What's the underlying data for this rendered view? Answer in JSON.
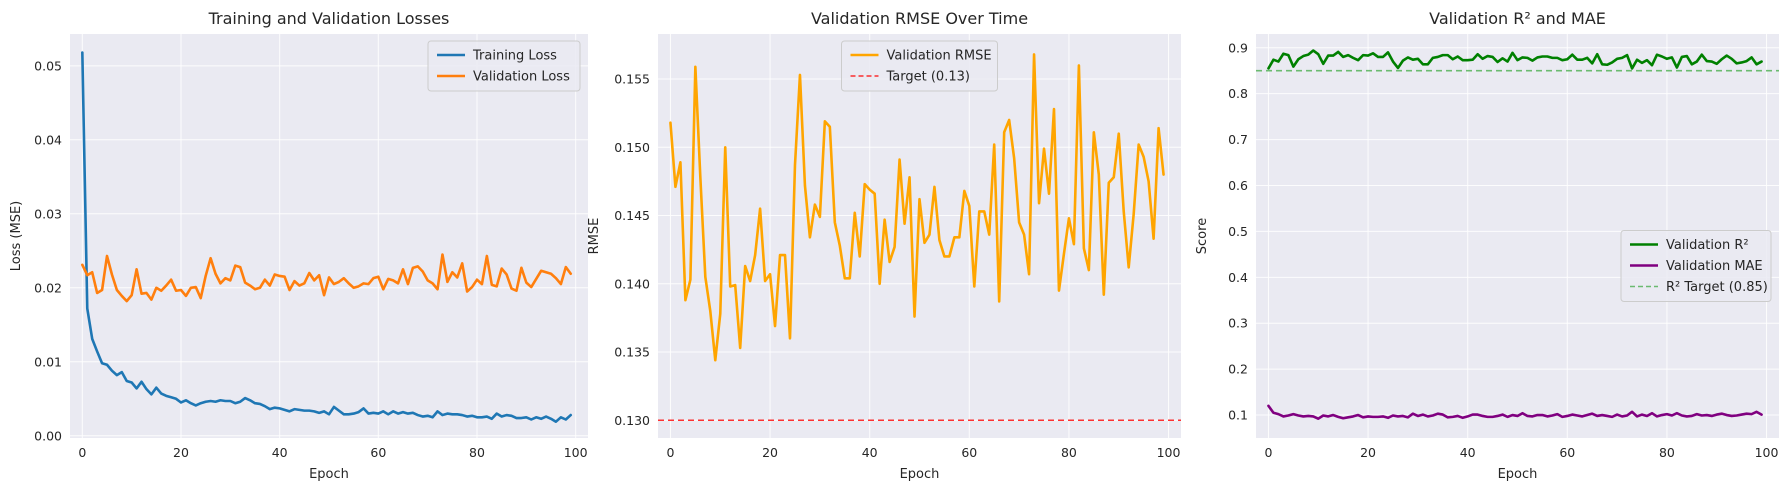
{
  "chart_data": [
    {
      "type": "line",
      "title": "Training and Validation Losses",
      "xlabel": "Epoch",
      "ylabel": "Loss (MSE)",
      "xlim": [
        -2.5,
        102.5
      ],
      "ylim": [
        -0.0003,
        0.0543
      ],
      "xticks": [
        0,
        20,
        40,
        60,
        80,
        100
      ],
      "xtick_labels": [
        "0",
        "20",
        "40",
        "60",
        "80",
        "100"
      ],
      "yticks": [
        0.0,
        0.01,
        0.02,
        0.03,
        0.04,
        0.05
      ],
      "ytick_labels": [
        "0.00",
        "0.01",
        "0.02",
        "0.03",
        "0.04",
        "0.05"
      ],
      "grid": true,
      "legend": "upper-right",
      "series": [
        {
          "name": "Training Loss",
          "color": "#1f77b4",
          "values": [
            0.0518,
            0.0172,
            0.0131,
            0.0114,
            0.0098,
            0.0096,
            0.0088,
            0.0082,
            0.0086,
            0.0074,
            0.0072,
            0.0064,
            0.0073,
            0.0063,
            0.0056,
            0.0065,
            0.0057,
            0.0054,
            0.0052,
            0.005,
            0.0045,
            0.0048,
            0.0044,
            0.0041,
            0.0044,
            0.0046,
            0.0047,
            0.0046,
            0.0048,
            0.0047,
            0.0047,
            0.0044,
            0.0046,
            0.0051,
            0.0048,
            0.0044,
            0.0043,
            0.004,
            0.0036,
            0.0038,
            0.0037,
            0.0035,
            0.0033,
            0.0036,
            0.0035,
            0.0034,
            0.0034,
            0.0033,
            0.0031,
            0.0033,
            0.0029,
            0.0039,
            0.0034,
            0.0029,
            0.0029,
            0.003,
            0.0032,
            0.0037,
            0.003,
            0.0031,
            0.003,
            0.0033,
            0.0029,
            0.0033,
            0.003,
            0.0032,
            0.003,
            0.0031,
            0.0028,
            0.0026,
            0.0027,
            0.0025,
            0.0033,
            0.0028,
            0.003,
            0.0029,
            0.0029,
            0.0028,
            0.0026,
            0.0027,
            0.0025,
            0.0025,
            0.0026,
            0.0023,
            0.003,
            0.0026,
            0.0028,
            0.0027,
            0.0024,
            0.0024,
            0.0025,
            0.0022,
            0.0025,
            0.0023,
            0.0026,
            0.0023,
            0.0019,
            0.0025,
            0.0022,
            0.0028
          ]
        },
        {
          "name": "Validation Loss",
          "color": "#ff7f0e",
          "values": [
            0.0231,
            0.0217,
            0.0221,
            0.0193,
            0.0197,
            0.0243,
            0.0218,
            0.0197,
            0.0189,
            0.0182,
            0.019,
            0.0225,
            0.0192,
            0.0193,
            0.0184,
            0.02,
            0.0196,
            0.0203,
            0.0211,
            0.0196,
            0.0197,
            0.0189,
            0.02,
            0.0201,
            0.0186,
            0.0216,
            0.024,
            0.0219,
            0.0206,
            0.0213,
            0.021,
            0.023,
            0.0228,
            0.0207,
            0.0203,
            0.0198,
            0.02,
            0.0211,
            0.0203,
            0.0218,
            0.0216,
            0.0215,
            0.0197,
            0.0209,
            0.0203,
            0.0206,
            0.022,
            0.021,
            0.0217,
            0.019,
            0.0214,
            0.0205,
            0.0208,
            0.0213,
            0.0206,
            0.02,
            0.0202,
            0.0206,
            0.0205,
            0.0213,
            0.0215,
            0.0198,
            0.0212,
            0.021,
            0.0206,
            0.0225,
            0.0205,
            0.0227,
            0.0229,
            0.0222,
            0.021,
            0.0206,
            0.0198,
            0.0245,
            0.0208,
            0.0221,
            0.0214,
            0.0233,
            0.0195,
            0.0201,
            0.0211,
            0.0205,
            0.0243,
            0.0204,
            0.0202,
            0.0226,
            0.0218,
            0.0199,
            0.0196,
            0.0227,
            0.0207,
            0.0201,
            0.0212,
            0.0223,
            0.0221,
            0.0219,
            0.0213,
            0.0205,
            0.0228,
            0.0219
          ]
        }
      ]
    },
    {
      "type": "line",
      "title": "Validation RMSE Over Time",
      "xlabel": "Epoch",
      "ylabel": "RMSE",
      "xlim": [
        -2.5,
        102.5
      ],
      "ylim": [
        0.1287,
        0.1583
      ],
      "xticks": [
        0,
        20,
        40,
        60,
        80,
        100
      ],
      "xtick_labels": [
        "0",
        "20",
        "40",
        "60",
        "80",
        "100"
      ],
      "yticks": [
        0.13,
        0.135,
        0.14,
        0.145,
        0.15,
        0.155
      ],
      "ytick_labels": [
        "0.130",
        "0.135",
        "0.140",
        "0.145",
        "0.150",
        "0.155"
      ],
      "grid": true,
      "legend": "upper-center",
      "series": [
        {
          "name": "Validation RMSE",
          "color": "#ffa500",
          "values": [
            0.1518,
            0.1471,
            0.1489,
            0.1388,
            0.1403,
            0.1559,
            0.1478,
            0.1405,
            0.138,
            0.1344,
            0.1378,
            0.15,
            0.1398,
            0.1399,
            0.1353,
            0.1413,
            0.1402,
            0.1421,
            0.1455,
            0.1402,
            0.1407,
            0.1369,
            0.1421,
            0.1421,
            0.136,
            0.1487,
            0.1553,
            0.1472,
            0.1434,
            0.1458,
            0.1449,
            0.1519,
            0.1515,
            0.1445,
            0.1428,
            0.1404,
            0.1404,
            0.1452,
            0.142,
            0.1473,
            0.1469,
            0.1466,
            0.14,
            0.1447,
            0.1416,
            0.1427,
            0.1491,
            0.1444,
            0.1478,
            0.1376,
            0.1462,
            0.143,
            0.1436,
            0.1471,
            0.1432,
            0.142,
            0.142,
            0.1434,
            0.1434,
            0.1468,
            0.1457,
            0.1398,
            0.1453,
            0.1453,
            0.1436,
            0.1502,
            0.1387,
            0.1511,
            0.152,
            0.1492,
            0.1445,
            0.1436,
            0.1407,
            0.1568,
            0.1459,
            0.1499,
            0.1466,
            0.1528,
            0.1395,
            0.1422,
            0.1448,
            0.1429,
            0.156,
            0.1426,
            0.141,
            0.1511,
            0.148,
            0.1392,
            0.1474,
            0.1478,
            0.151,
            0.1453,
            0.1412,
            0.1451,
            0.1502,
            0.1493,
            0.1475,
            0.1433,
            0.1514,
            0.148
          ]
        }
      ],
      "reference_line": {
        "name": "Target (0.13)",
        "y": 0.13,
        "color": "#ff0000",
        "style": "dashed"
      }
    },
    {
      "type": "line",
      "title": "Validation R² and MAE",
      "xlabel": "Epoch",
      "ylabel": "Score",
      "xlim": [
        -2.5,
        102.5
      ],
      "ylim": [
        0.05,
        0.93
      ],
      "xticks": [
        0,
        20,
        40,
        60,
        80,
        100
      ],
      "xtick_labels": [
        "0",
        "20",
        "40",
        "60",
        "80",
        "100"
      ],
      "yticks": [
        0.1,
        0.2,
        0.3,
        0.4,
        0.5,
        0.6,
        0.7,
        0.8,
        0.9
      ],
      "ytick_labels": [
        "0.1",
        "0.2",
        "0.3",
        "0.4",
        "0.5",
        "0.6",
        "0.7",
        "0.8",
        "0.9"
      ],
      "grid": true,
      "legend": "center-right",
      "series": [
        {
          "name": "Validation R²",
          "color": "#008000",
          "values": [
            0.855,
            0.874,
            0.87,
            0.887,
            0.884,
            0.859,
            0.875,
            0.882,
            0.885,
            0.894,
            0.886,
            0.865,
            0.883,
            0.883,
            0.891,
            0.88,
            0.884,
            0.878,
            0.873,
            0.884,
            0.883,
            0.888,
            0.88,
            0.88,
            0.89,
            0.87,
            0.856,
            0.872,
            0.879,
            0.874,
            0.876,
            0.864,
            0.864,
            0.878,
            0.88,
            0.884,
            0.884,
            0.875,
            0.881,
            0.873,
            0.873,
            0.874,
            0.886,
            0.876,
            0.882,
            0.88,
            0.869,
            0.877,
            0.87,
            0.889,
            0.873,
            0.879,
            0.878,
            0.872,
            0.879,
            0.881,
            0.881,
            0.878,
            0.878,
            0.873,
            0.875,
            0.885,
            0.874,
            0.874,
            0.878,
            0.866,
            0.886,
            0.864,
            0.863,
            0.868,
            0.876,
            0.878,
            0.884,
            0.855,
            0.874,
            0.867,
            0.873,
            0.862,
            0.885,
            0.881,
            0.876,
            0.879,
            0.857,
            0.88,
            0.882,
            0.864,
            0.87,
            0.885,
            0.871,
            0.87,
            0.865,
            0.875,
            0.883,
            0.876,
            0.866,
            0.868,
            0.871,
            0.879,
            0.864,
            0.87
          ]
        },
        {
          "name": "Validation MAE",
          "color": "#800080",
          "values": [
            0.12,
            0.105,
            0.102,
            0.097,
            0.099,
            0.102,
            0.099,
            0.097,
            0.098,
            0.097,
            0.092,
            0.099,
            0.097,
            0.1,
            0.096,
            0.093,
            0.095,
            0.097,
            0.1,
            0.095,
            0.097,
            0.096,
            0.096,
            0.097,
            0.094,
            0.099,
            0.097,
            0.098,
            0.095,
            0.103,
            0.098,
            0.101,
            0.097,
            0.099,
            0.103,
            0.101,
            0.095,
            0.096,
            0.098,
            0.094,
            0.097,
            0.101,
            0.101,
            0.098,
            0.096,
            0.096,
            0.098,
            0.101,
            0.096,
            0.1,
            0.098,
            0.104,
            0.098,
            0.097,
            0.1,
            0.1,
            0.097,
            0.099,
            0.102,
            0.096,
            0.098,
            0.101,
            0.099,
            0.097,
            0.1,
            0.103,
            0.098,
            0.1,
            0.098,
            0.096,
            0.101,
            0.097,
            0.099,
            0.107,
            0.097,
            0.101,
            0.098,
            0.104,
            0.097,
            0.1,
            0.102,
            0.099,
            0.104,
            0.099,
            0.097,
            0.098,
            0.102,
            0.099,
            0.1,
            0.098,
            0.101,
            0.103,
            0.1,
            0.098,
            0.099,
            0.101,
            0.103,
            0.102,
            0.107,
            0.101
          ]
        }
      ],
      "reference_line": {
        "name": "R² Target (0.85)",
        "y": 0.85,
        "color": "#4caf50",
        "style": "dashed"
      }
    }
  ]
}
